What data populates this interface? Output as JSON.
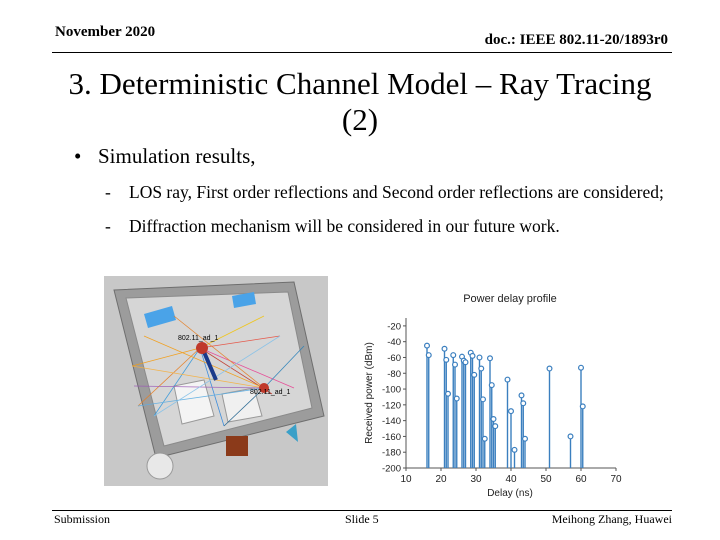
{
  "header": {
    "date": "November 2020",
    "doc": "doc.: IEEE 802.11-20/1893r0"
  },
  "title": {
    "line1": "3. Deterministic Channel Model – Ray Tracing",
    "line2": "(2)"
  },
  "bullet": {
    "text": "Simulation results,"
  },
  "subbullets": [
    {
      "dash": "-",
      "text": "LOS ray, First order reflections and Second order reflections are considered;"
    },
    {
      "dash": "-",
      "text": "Diffraction mechanism will be considered in our future work."
    }
  ],
  "scene": {
    "tx_label": "802.11_ad_1",
    "rx_label": "802.11_ad_1"
  },
  "chart_data": {
    "type": "stem",
    "title": "Power delay profile",
    "xlabel": "Delay (ns)",
    "ylabel": "Received power (dBm)",
    "xlim": [
      10,
      70
    ],
    "ylim": [
      -200,
      -10
    ],
    "xticks": [
      10,
      20,
      30,
      40,
      50,
      60,
      70
    ],
    "yticks": [
      -20,
      -40,
      -60,
      -80,
      -100,
      -120,
      -140,
      -160,
      -180,
      -200
    ],
    "stem_color": "#3b7fbf",
    "points": [
      [
        16,
        -45
      ],
      [
        16.5,
        -57
      ],
      [
        21,
        -49
      ],
      [
        21.5,
        -63
      ],
      [
        22,
        -106
      ],
      [
        23.5,
        -57
      ],
      [
        24,
        -69
      ],
      [
        24.5,
        -112
      ],
      [
        26,
        -59
      ],
      [
        26.5,
        -64
      ],
      [
        27,
        -66
      ],
      [
        28.5,
        -54
      ],
      [
        29,
        -58
      ],
      [
        29.5,
        -82
      ],
      [
        31,
        -60
      ],
      [
        31.5,
        -74
      ],
      [
        32,
        -113
      ],
      [
        32.5,
        -163
      ],
      [
        34,
        -61
      ],
      [
        34.5,
        -95
      ],
      [
        35,
        -138
      ],
      [
        35.5,
        -147
      ],
      [
        39,
        -88
      ],
      [
        40,
        -128
      ],
      [
        41,
        -177
      ],
      [
        43,
        -108
      ],
      [
        43.5,
        -118
      ],
      [
        44,
        -163
      ],
      [
        51,
        -74
      ],
      [
        57,
        -160
      ],
      [
        60,
        -73
      ],
      [
        60.5,
        -122
      ]
    ]
  }
}
